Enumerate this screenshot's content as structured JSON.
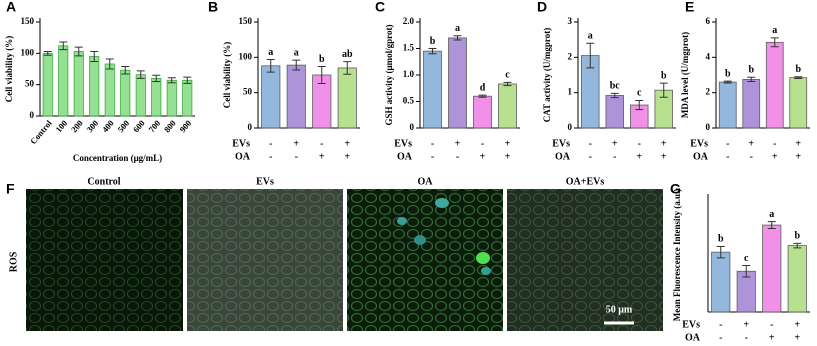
{
  "chart_data": [
    {
      "type": "bar",
      "panel": "A",
      "ylabel": "Cell viability (%)",
      "xlabel": "Concentration (μg/mL)",
      "categories": [
        "Control",
        "100",
        "200",
        "300",
        "400",
        "500",
        "600",
        "700",
        "800",
        "900"
      ],
      "values": [
        100,
        112,
        103,
        95,
        83,
        73,
        66,
        60,
        57,
        57
      ],
      "errors": [
        3,
        6,
        7,
        8,
        8,
        6,
        6,
        5,
        4,
        5
      ],
      "color": "#8fe08f",
      "edge": "#2fa82f",
      "ylim": [
        0,
        150
      ],
      "yticks": [
        0,
        50,
        100,
        150
      ]
    },
    {
      "type": "bar",
      "panel": "B",
      "ylabel": "Cell viability (%)",
      "values": [
        88,
        89,
        75,
        85
      ],
      "errors": [
        9,
        7,
        12,
        9
      ],
      "annotations": [
        "a",
        "a",
        "b",
        "ab"
      ],
      "colors": [
        "#8fb4dc",
        "#a98fd8",
        "#f08ce6",
        "#b4e08a"
      ],
      "ylim": [
        0,
        150
      ],
      "yticks": [
        0,
        50,
        100,
        150
      ],
      "treatments": [
        {
          "name": "EVs",
          "marks": [
            "-",
            "+",
            "-",
            "+"
          ]
        },
        {
          "name": "OA",
          "marks": [
            "-",
            "-",
            "+",
            "+"
          ]
        }
      ]
    },
    {
      "type": "bar",
      "panel": "C",
      "ylabel": "GSH activity (μmol/gprot)",
      "values": [
        1.45,
        1.7,
        0.6,
        0.83
      ],
      "errors": [
        0.05,
        0.04,
        0.02,
        0.03
      ],
      "annotations": [
        "b",
        "a",
        "d",
        "c"
      ],
      "colors": [
        "#8fb4dc",
        "#a98fd8",
        "#f08ce6",
        "#b4e08a"
      ],
      "ylim": [
        0,
        2.0
      ],
      "yticks": [
        0,
        {
          "value": 0.5,
          "label": "0.5"
        },
        {
          "value": 1,
          "label": "1.0"
        },
        {
          "value": 1.5,
          "label": "1.5"
        },
        {
          "value": 2,
          "label": "2.0"
        }
      ],
      "treatments": [
        {
          "name": "EVs",
          "marks": [
            "-",
            "+",
            "-",
            "+"
          ]
        },
        {
          "name": "OA",
          "marks": [
            "-",
            "-",
            "+",
            "+"
          ]
        }
      ]
    },
    {
      "type": "bar",
      "panel": "D",
      "ylabel": "CAT activity (U/mgprot)",
      "values": [
        2.05,
        0.92,
        0.65,
        1.07
      ],
      "errors": [
        0.35,
        0.06,
        0.13,
        0.2
      ],
      "annotations": [
        "a",
        "bc",
        "c",
        "b"
      ],
      "colors": [
        "#8fb4dc",
        "#a98fd8",
        "#f08ce6",
        "#b4e08a"
      ],
      "ylim": [
        0,
        3
      ],
      "yticks": [
        0,
        1,
        2,
        3
      ],
      "treatments": [
        {
          "name": "EVs",
          "marks": [
            "-",
            "+",
            "-",
            "+"
          ]
        },
        {
          "name": "OA",
          "marks": [
            "-",
            "-",
            "+",
            "+"
          ]
        }
      ]
    },
    {
      "type": "bar",
      "panel": "E",
      "ylabel": "MDA level (U/mgprot)",
      "values": [
        2.6,
        2.75,
        4.85,
        2.85
      ],
      "errors": [
        0.05,
        0.12,
        0.25,
        0.05
      ],
      "annotations": [
        "b",
        "b",
        "a",
        "b"
      ],
      "colors": [
        "#8fb4dc",
        "#a98fd8",
        "#f08ce6",
        "#b4e08a"
      ],
      "ylim": [
        0,
        6
      ],
      "yticks": [
        0,
        2,
        4,
        6
      ],
      "treatments": [
        {
          "name": "EVs",
          "marks": [
            "-",
            "+",
            "-",
            "+"
          ]
        },
        {
          "name": "OA",
          "marks": [
            "-",
            "-",
            "+",
            "+"
          ]
        }
      ]
    },
    {
      "type": "bar",
      "panel": "G",
      "ylabel": "Mean Fluorescence Intensity (a.u.)",
      "values": [
        2.1,
        1.43,
        3.05,
        2.33
      ],
      "errors": [
        0.2,
        0.2,
        0.12,
        0.08
      ],
      "annotations": [
        "b",
        "c",
        "a",
        "b"
      ],
      "colors": [
        "#8fb4dc",
        "#a98fd8",
        "#f08ce6",
        "#b4e08a"
      ],
      "ylim": [
        0,
        4
      ],
      "treatments": [
        {
          "name": "EVs",
          "marks": [
            "-",
            "+",
            "-",
            "+"
          ]
        },
        {
          "name": "OA",
          "marks": [
            "-",
            "-",
            "+",
            "+"
          ]
        }
      ]
    }
  ],
  "images": {
    "panel": "F",
    "row_label": "ROS",
    "labels": [
      "Control",
      "EVs",
      "OA",
      "OA+EVs"
    ],
    "scale_bar": "50 μm"
  }
}
